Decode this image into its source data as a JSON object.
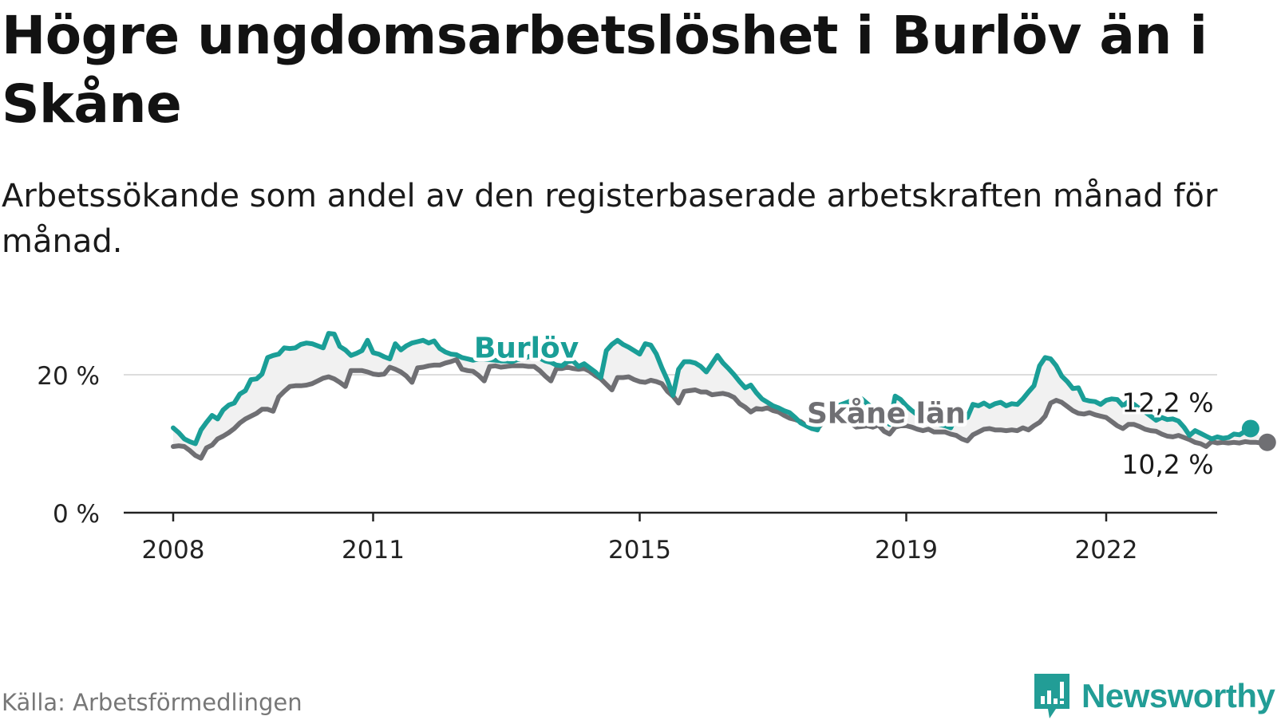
{
  "header": {
    "title": "Högre ungdomsarbetslöshet i Burlöv än i Skåne",
    "subtitle": "Arbetssökande som andel av den registerbaserade arbetskraften månad för månad."
  },
  "footer": {
    "source": "Källa: Arbetsförmedlingen",
    "brand": "Newsworthy"
  },
  "colors": {
    "burlov": "#1a9e97",
    "skane": "#6f6f73",
    "axis": "#222222",
    "grid": "#dddddd",
    "brand": "#229d96"
  },
  "chart_data": {
    "type": "line",
    "title": "Högre ungdomsarbetslöshet i Burlöv än i Skåne",
    "xlabel": "",
    "ylabel": "",
    "ylim": [
      0,
      30
    ],
    "xlim": [
      2008,
      2023.5
    ],
    "x_ticks": [
      {
        "value": 2008,
        "label": "2008"
      },
      {
        "value": 2011,
        "label": "2011"
      },
      {
        "value": 2015,
        "label": "2015"
      },
      {
        "value": 2019,
        "label": "2019"
      },
      {
        "value": 2022,
        "label": "2022"
      }
    ],
    "y_ticks": [
      {
        "value": 0,
        "label": "0 %"
      },
      {
        "value": 20,
        "label": "20 %"
      }
    ],
    "x_start": 2008.0,
    "x_step": 0.083333,
    "series": [
      {
        "name": "Burlöv",
        "color": "#1a9e97",
        "label_at": [
          2013.3,
          24.0
        ],
        "end_label": "12,2 %",
        "values": [
          12.3,
          11.6,
          10.7,
          10.3,
          10.0,
          12.0,
          13.1,
          14.1,
          13.6,
          14.9,
          15.6,
          15.9,
          17.2,
          17.7,
          19.3,
          19.4,
          20.1,
          22.5,
          22.8,
          23.0,
          23.9,
          23.8,
          23.9,
          24.4,
          24.6,
          24.5,
          24.2,
          23.9,
          26.0,
          25.9,
          24.1,
          23.6,
          22.8,
          23.1,
          23.5,
          25.0,
          23.2,
          23.0,
          22.6,
          22.3,
          24.5,
          23.6,
          24.2,
          24.6,
          24.8,
          25.0,
          24.6,
          24.9,
          23.8,
          23.3,
          23.0,
          22.9,
          22.5,
          22.3,
          22.1,
          22.3,
          22.3,
          22.2,
          22.1,
          22.0,
          22.0,
          21.9,
          22.2,
          22.4,
          22.6,
          23.0,
          22.4,
          22.0,
          21.8,
          21.4,
          21.3,
          21.9,
          22.0,
          21.2,
          21.6,
          21.0,
          20.4,
          19.6,
          23.5,
          24.4,
          25.0,
          24.4,
          24.0,
          23.5,
          23.0,
          24.5,
          24.3,
          23.0,
          21.0,
          19.2,
          17.0,
          20.8,
          21.9,
          21.9,
          21.7,
          21.2,
          20.4,
          21.6,
          22.8,
          21.7,
          20.9,
          20.0,
          19.0,
          18.1,
          18.5,
          17.4,
          16.5,
          16.0,
          15.5,
          15.2,
          14.8,
          14.5,
          13.8,
          13.0,
          12.6,
          12.2,
          12.0,
          13.8,
          14.6,
          15.0,
          15.6,
          15.9,
          16.2,
          16.4,
          16.5,
          15.8,
          15.1,
          14.4,
          13.7,
          12.8,
          16.9,
          16.4,
          15.5,
          14.8,
          14.2,
          13.6,
          13.4,
          13.2,
          12.8,
          12.6,
          12.3,
          14.0,
          13.5,
          13.8,
          15.7,
          15.5,
          15.9,
          15.4,
          15.8,
          16.0,
          15.5,
          15.8,
          15.7,
          16.5,
          17.5,
          18.4,
          21.3,
          22.5,
          22.3,
          21.3,
          19.8,
          19.0,
          18.0,
          18.1,
          16.4,
          16.2,
          16.1,
          15.7,
          16.3,
          16.5,
          16.4,
          15.5,
          16.1,
          15.7,
          15.1,
          14.6,
          14.0,
          13.4,
          13.8,
          13.5,
          13.6,
          13.3,
          12.4,
          11.2,
          11.9,
          11.5,
          11.1,
          10.7,
          11.0,
          10.8,
          10.9,
          11.4,
          11.3,
          11.8,
          12.2
        ]
      },
      {
        "name": "Skåne län",
        "color": "#6f6f73",
        "label_at": [
          2018.7,
          14.5
        ],
        "end_label": "10,2 %",
        "values": [
          9.6,
          9.7,
          9.6,
          9.0,
          8.3,
          7.9,
          9.4,
          9.8,
          10.7,
          11.1,
          11.6,
          12.2,
          13.0,
          13.6,
          14.0,
          14.4,
          15.0,
          15.0,
          14.7,
          16.8,
          17.6,
          18.3,
          18.4,
          18.4,
          18.5,
          18.7,
          19.1,
          19.5,
          19.7,
          19.4,
          18.9,
          18.3,
          20.6,
          20.6,
          20.6,
          20.4,
          20.1,
          20.0,
          20.1,
          21.1,
          20.8,
          20.4,
          19.8,
          18.9,
          21.0,
          21.1,
          21.3,
          21.4,
          21.4,
          21.7,
          21.9,
          22.2,
          20.8,
          20.6,
          20.5,
          19.9,
          19.1,
          21.2,
          21.3,
          21.1,
          21.2,
          21.3,
          21.3,
          21.3,
          21.2,
          21.2,
          20.6,
          19.8,
          19.1,
          20.9,
          20.9,
          21.1,
          20.9,
          20.8,
          20.9,
          20.5,
          19.9,
          19.4,
          18.6,
          17.8,
          19.6,
          19.6,
          19.7,
          19.3,
          19.0,
          18.9,
          19.2,
          19.0,
          18.7,
          17.6,
          16.9,
          15.9,
          17.6,
          17.7,
          17.8,
          17.5,
          17.5,
          17.1,
          17.2,
          17.3,
          17.1,
          16.7,
          15.8,
          15.3,
          14.6,
          15.1,
          15.0,
          15.2,
          14.8,
          14.6,
          14.1,
          13.7,
          13.5,
          13.2,
          12.6,
          12.2,
          12.2,
          13.1,
          13.5,
          13.6,
          13.7,
          13.5,
          13.0,
          12.4,
          12.5,
          12.6,
          12.4,
          12.7,
          11.8,
          11.4,
          12.4,
          12.6,
          12.6,
          12.4,
          12.1,
          11.9,
          12.1,
          11.7,
          11.7,
          11.7,
          11.4,
          11.2,
          10.7,
          10.4,
          11.3,
          11.7,
          12.1,
          12.2,
          12.0,
          12.0,
          11.9,
          12.0,
          11.9,
          12.3,
          12.0,
          12.6,
          13.1,
          14.0,
          15.9,
          16.3,
          16.0,
          15.4,
          14.8,
          14.4,
          14.3,
          14.5,
          14.2,
          14.0,
          13.8,
          13.2,
          12.6,
          12.2,
          12.8,
          12.8,
          12.5,
          12.1,
          11.9,
          11.8,
          11.4,
          11.1,
          11.0,
          11.2,
          10.9,
          10.6,
          10.2,
          10.0,
          9.6,
          10.3,
          10.1,
          10.2,
          10.1,
          10.2,
          10.1,
          10.3,
          10.2,
          10.2,
          10.1,
          10.2
        ]
      }
    ]
  }
}
